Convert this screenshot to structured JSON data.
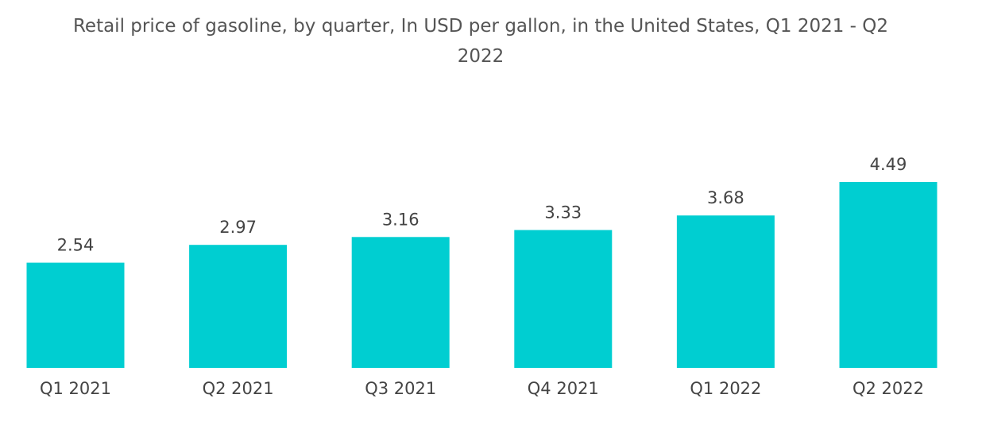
{
  "chart_data": {
    "type": "bar",
    "title_line1": "Retail price of gasoline, by quarter, In USD per gallon, in the United States, Q1 2021 - Q2",
    "title_line2": "2022",
    "categories": [
      "Q1 2021",
      "Q2 2021",
      "Q3 2021",
      "Q4 2021",
      "Q1 2022",
      "Q2 2022"
    ],
    "values": [
      2.54,
      2.97,
      3.16,
      3.33,
      3.68,
      4.49
    ],
    "value_labels": [
      "2.54",
      "2.97",
      "3.16",
      "3.33",
      "3.68",
      "4.49"
    ],
    "xlabel": "",
    "ylabel": "",
    "ylim": [
      0,
      4.49
    ],
    "bar_color": "#00CED1",
    "grid": false,
    "legend": "none"
  }
}
